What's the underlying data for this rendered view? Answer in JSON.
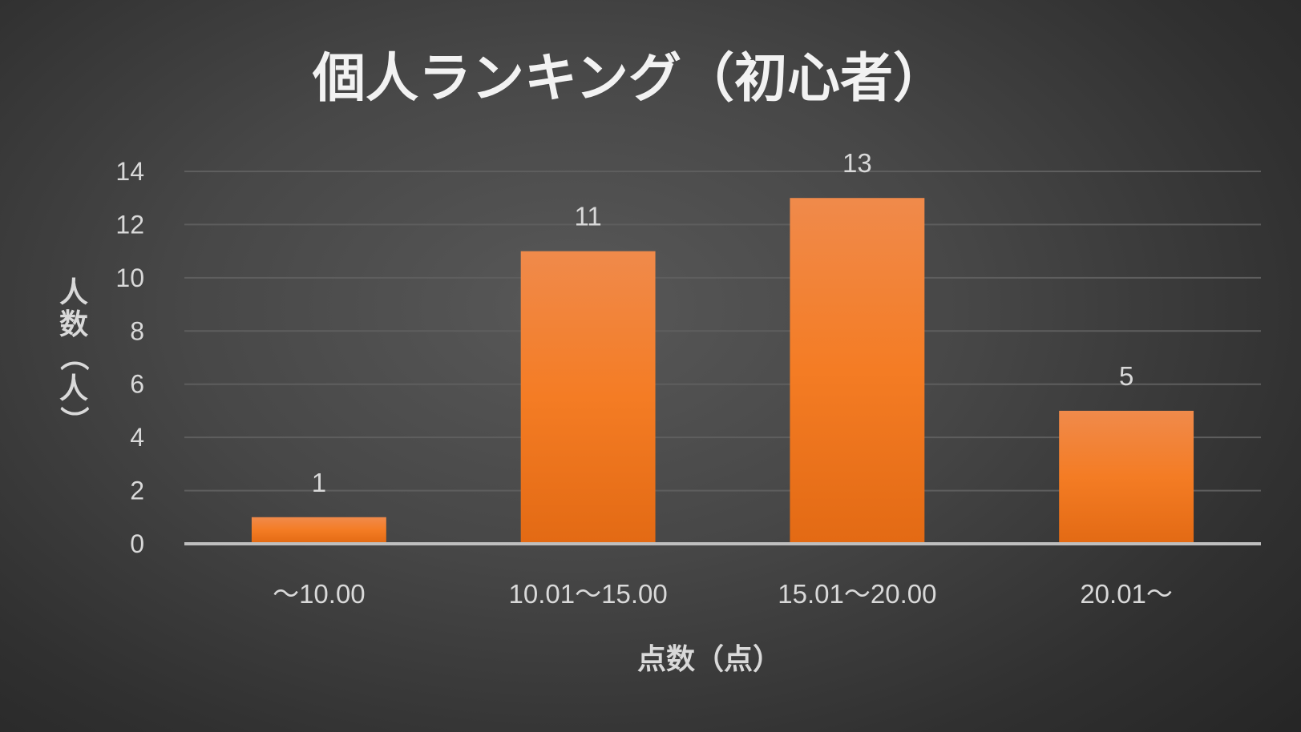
{
  "chart_data": {
    "type": "bar",
    "title": "個人ランキング（初心者）",
    "xlabel": "点数（点）",
    "ylabel": "人数（人）",
    "categories": [
      "～10.00",
      "10.01～15.00",
      "15.01～20.00",
      "20.01～"
    ],
    "values": [
      1,
      11,
      13,
      5
    ],
    "ylim": [
      0,
      14
    ],
    "yticks": [
      0,
      2,
      4,
      6,
      8,
      10,
      12,
      14
    ],
    "grid": true,
    "data_labels": true,
    "legend": "none",
    "colors": {
      "bar_top": "#f08a4b",
      "bar_mid": "#f47c24",
      "bar_bottom": "#e36a14",
      "background": "#474747"
    }
  }
}
